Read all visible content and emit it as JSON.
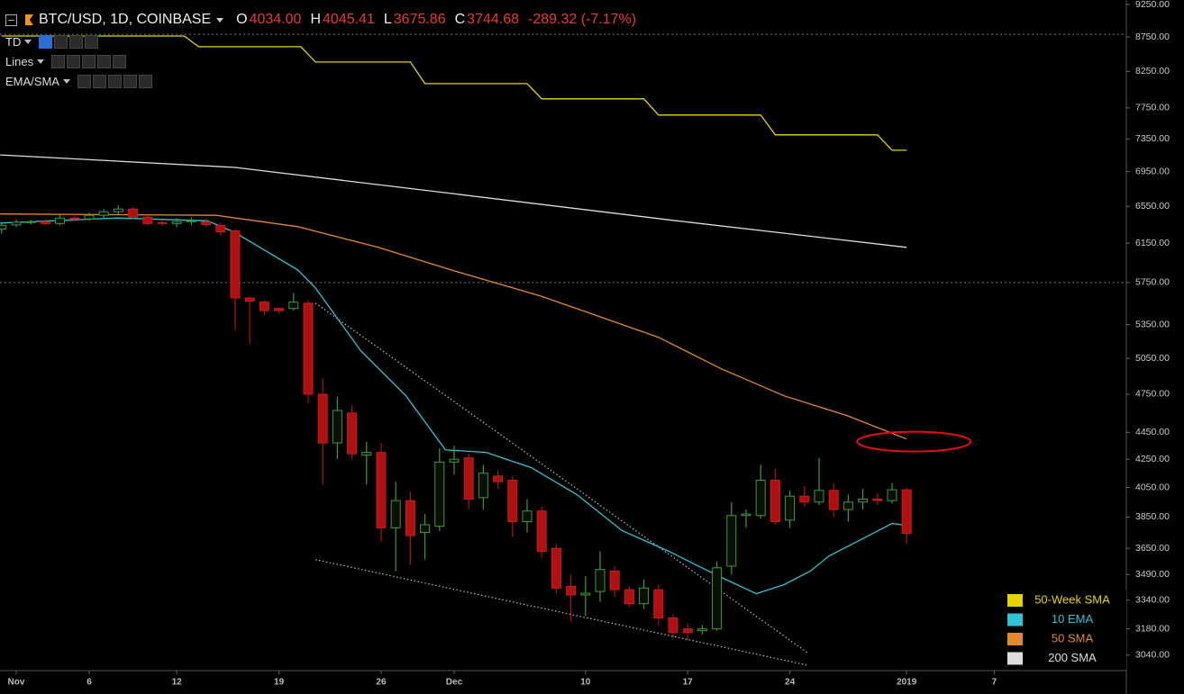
{
  "chart_data": {
    "type": "candlestick",
    "title": "BTC/USD, 1D, COINBASE",
    "ohlc_labels": [
      {
        "key": "O",
        "value": "4034.00"
      },
      {
        "key": "H",
        "value": "4045.41"
      },
      {
        "key": "L",
        "value": "3675.86"
      },
      {
        "key": "C",
        "value": "3744.68"
      }
    ],
    "change": "-289.32 (-7.17%)",
    "indicators": [
      "TD",
      "Lines",
      "EMA/SMA"
    ],
    "log_scale": true,
    "xlim": [
      -1.11,
      76.05
    ],
    "xticks": [
      {
        "value": 0,
        "label": "Nov"
      },
      {
        "value": 5,
        "label": "6"
      },
      {
        "value": 11,
        "label": "12"
      },
      {
        "value": 18,
        "label": "19"
      },
      {
        "value": 25,
        "label": "26"
      },
      {
        "value": 30,
        "label": "Dec"
      },
      {
        "value": 39,
        "label": "10"
      },
      {
        "value": 46,
        "label": "17"
      },
      {
        "value": 53,
        "label": "24"
      },
      {
        "value": 61,
        "label": "2019"
      },
      {
        "value": 67,
        "label": "7"
      }
    ],
    "ylim": [
      2961,
      9321
    ],
    "yticks": [
      {
        "value": 9250,
        "label": "9250.00"
      },
      {
        "value": 8750,
        "label": "8750.00"
      },
      {
        "value": 8250,
        "label": "8250.00"
      },
      {
        "value": 7750,
        "label": "7750.00"
      },
      {
        "value": 7350,
        "label": "7350.00"
      },
      {
        "value": 6950,
        "label": "6950.00"
      },
      {
        "value": 6550,
        "label": "6550.00"
      },
      {
        "value": 6150,
        "label": "6150.00"
      },
      {
        "value": 5750,
        "label": "5750.00"
      },
      {
        "value": 5350,
        "label": "5350.00"
      },
      {
        "value": 5050,
        "label": "5050.00"
      },
      {
        "value": 4750,
        "label": "4750.00"
      },
      {
        "value": 4450,
        "label": "4450.00"
      },
      {
        "value": 4250,
        "label": "4250.00"
      },
      {
        "value": 4050,
        "label": "4050.00"
      },
      {
        "value": 3850,
        "label": "3850.00"
      },
      {
        "value": 3650,
        "label": "3650.00"
      },
      {
        "value": 3490,
        "label": "3490.00"
      },
      {
        "value": 3340,
        "label": "3340.00"
      },
      {
        "value": 3180,
        "label": "3180.00"
      },
      {
        "value": 3040,
        "label": "3040.00"
      }
    ],
    "up_color": "#3a9a3a",
    "down_color": "#b01010",
    "x": [
      -1,
      0,
      1,
      2,
      3,
      4,
      5,
      6,
      7,
      8,
      9,
      10,
      11,
      12,
      13,
      14,
      15,
      16,
      17,
      18,
      19,
      20,
      21,
      22,
      23,
      24,
      25,
      26,
      27,
      28,
      29,
      30,
      31,
      32,
      33,
      34,
      35,
      36,
      37,
      38,
      39,
      40,
      41,
      42,
      43,
      44,
      45,
      46,
      47,
      48,
      49,
      50,
      51,
      52,
      53,
      54,
      55,
      56,
      57,
      58,
      59,
      60,
      61
    ],
    "open": [
      6300,
      6345,
      6375,
      6380,
      6360,
      6420,
      6410,
      6450,
      6490,
      6520,
      6430,
      6370,
      6360,
      6380,
      6380,
      6340,
      6280,
      5600,
      5560,
      5500,
      5500,
      5550,
      4750,
      4370,
      4600,
      4280,
      4300,
      3780,
      3960,
      3750,
      3790,
      4230,
      4260,
      3980,
      4130,
      4100,
      3820,
      3890,
      3650,
      3420,
      3370,
      3390,
      3510,
      3400,
      3320,
      3400,
      3240,
      3180,
      3170,
      3180,
      3540,
      3860,
      3860,
      4100,
      3830,
      3990,
      3950,
      4030,
      3900,
      3950,
      3970,
      3960,
      4034
    ],
    "high": [
      6360,
      6400,
      6400,
      6410,
      6460,
      6460,
      6480,
      6520,
      6560,
      6540,
      6450,
      6400,
      6420,
      6430,
      6420,
      6370,
      6300,
      5620,
      5580,
      5510,
      5650,
      5580,
      4880,
      4730,
      4660,
      4380,
      4370,
      4090,
      4020,
      3870,
      4330,
      4350,
      4290,
      4210,
      4170,
      4130,
      3970,
      3920,
      3680,
      3490,
      3480,
      3630,
      3540,
      3420,
      3460,
      3430,
      3260,
      3210,
      3200,
      3570,
      3950,
      3900,
      4210,
      4180,
      4030,
      4060,
      4260,
      4080,
      4000,
      4040,
      4010,
      4080,
      4045.41
    ],
    "low": [
      6250,
      6320,
      6350,
      6340,
      6340,
      6380,
      6390,
      6420,
      6460,
      6410,
      6340,
      6330,
      6320,
      6340,
      6320,
      6230,
      5300,
      5180,
      5440,
      5450,
      5480,
      4680,
      4070,
      4250,
      4250,
      4070,
      3690,
      3510,
      3550,
      3580,
      3760,
      4140,
      3900,
      3900,
      4040,
      3720,
      3750,
      3590,
      3380,
      3220,
      3250,
      3330,
      3360,
      3300,
      3290,
      3200,
      3130,
      3120,
      3150,
      3170,
      3490,
      3780,
      3840,
      3800,
      3780,
      3920,
      3930,
      3850,
      3820,
      3900,
      3930,
      3940,
      3675.86
    ],
    "close": [
      6340,
      6375,
      6380,
      6360,
      6420,
      6410,
      6450,
      6490,
      6520,
      6430,
      6360,
      6360,
      6380,
      6390,
      6350,
      6270,
      5600,
      5570,
      5480,
      5480,
      5560,
      4750,
      4370,
      4620,
      4290,
      4300,
      3780,
      3960,
      3730,
      3800,
      4230,
      4250,
      3970,
      4150,
      4090,
      3820,
      3890,
      3630,
      3410,
      3370,
      3380,
      3520,
      3400,
      3320,
      3410,
      3240,
      3160,
      3160,
      3180,
      3530,
      3860,
      3870,
      4100,
      3820,
      3990,
      3950,
      4030,
      3900,
      3950,
      3970,
      3960,
      4034,
      3744.68
    ],
    "series": [
      {
        "name": "50-Week SMA",
        "color": "#e6d400",
        "x": [
          -1,
          11.5,
          12.5,
          19.5,
          20.5,
          27,
          28,
          35,
          36,
          43,
          44,
          51,
          52,
          59,
          60,
          61
        ],
        "values": [
          8765,
          8765,
          8605,
          8605,
          8383,
          8383,
          8079,
          8079,
          7871,
          7871,
          7656,
          7656,
          7401,
          7401,
          7209,
          7209
        ]
      },
      {
        "name": "10 EMA",
        "color": "#2ec4d6",
        "x": [
          -1.1,
          6.9,
          13.1,
          14.9,
          19.3,
          20.5,
          23.6,
          26.7,
          29.4,
          32.2,
          35.3,
          38.4,
          41.5,
          44.6,
          48.3,
          50.7,
          52.6,
          54.4,
          55.7,
          58.1,
          60,
          61
        ],
        "values": [
          6365,
          6420,
          6390,
          6270,
          5875,
          5697,
          5117,
          4737,
          4319,
          4300,
          4189,
          4001,
          3762,
          3636,
          3473,
          3377,
          3430,
          3510,
          3603,
          3715,
          3808,
          3796
        ]
      },
      {
        "name": "50 SMA",
        "color": "#e08a2a",
        "x": [
          -1.1,
          13.7,
          19.3,
          24.8,
          29.8,
          35.9,
          44,
          48.3,
          52.6,
          56.9,
          61
        ],
        "values": [
          6465,
          6450,
          6326,
          6106,
          5875,
          5620,
          5236,
          4961,
          4737,
          4580,
          4400
        ]
      },
      {
        "name": "200 SMA",
        "color": "#dddddd",
        "x": [
          -1.1,
          15,
          29.8,
          45,
          61
        ],
        "values": [
          7152,
          7000,
          6696,
          6395,
          6106
        ]
      }
    ],
    "trendlines": [
      {
        "x": [
          20.5,
          54.3
        ],
        "values": [
          5551,
          3048
        ]
      },
      {
        "x": [
          20.5,
          54.3
        ],
        "values": [
          3580,
          2987
        ]
      }
    ],
    "levels": [
      8790,
      5750
    ],
    "highlight": {
      "x": 61.5,
      "value": 4380,
      "color": "#e01010"
    }
  }
}
